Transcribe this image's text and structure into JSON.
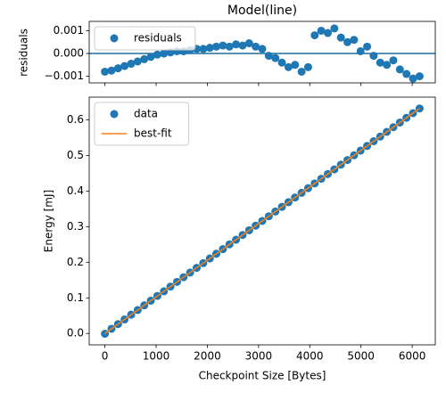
{
  "chart_data": [
    {
      "type": "scatter",
      "title": "Model(line)",
      "ylabel": "residuals",
      "x": [
        0,
        128,
        256,
        384,
        512,
        640,
        768,
        896,
        1024,
        1152,
        1280,
        1408,
        1536,
        1664,
        1792,
        1920,
        2048,
        2176,
        2304,
        2432,
        2560,
        2688,
        2816,
        2944,
        3072,
        3200,
        3328,
        3456,
        3584,
        3712,
        3840,
        3968,
        4096,
        4224,
        4352,
        4480,
        4608,
        4736,
        4864,
        4992,
        5120,
        5248,
        5376,
        5504,
        5632,
        5760,
        5888,
        6016,
        6144
      ],
      "series": [
        {
          "name": "residuals",
          "type": "scatter",
          "color": "#1f77b4",
          "values": [
            -0.0008,
            -0.00075,
            -0.00065,
            -0.00055,
            -0.00045,
            -0.00035,
            -0.00025,
            -0.00015,
            -5e-05,
            0,
            5e-05,
            0.0001,
            0.0001,
            0.00015,
            0.0002,
            0.0002,
            0.00025,
            0.0003,
            0.00035,
            0.0003,
            0.0004,
            0.00035,
            0.00045,
            0.0003,
            0.0002,
            -0.0001,
            -0.0002,
            -0.0004,
            -0.0006,
            -0.0005,
            -0.0008,
            -0.0006,
            0.0008,
            0.001,
            0.0009,
            0.0011,
            0.0007,
            0.0005,
            0.0006,
            0.0001,
            0.0003,
            -0.0001,
            -0.0004,
            -0.0005,
            -0.0003,
            -0.0007,
            -0.0009,
            -0.0011,
            -0.001
          ]
        }
      ],
      "hline": 0,
      "hline_color": "#1f6f9b",
      "xlim": [
        -307,
        6451
      ],
      "xticks": [
        0,
        1000,
        2000,
        3000,
        4000,
        5000,
        6000
      ],
      "ylim": [
        -0.00129,
        0.00141
      ],
      "yticks": [
        {
          "value": -0.001,
          "label": "−0.001"
        },
        {
          "value": 0,
          "label": "0.000"
        },
        0.001
      ],
      "legend": "upper left"
    },
    {
      "type": "scatter",
      "xlabel": "Checkpoint Size [Bytes]",
      "ylabel": "Energy [mJ]",
      "x": [
        0,
        128,
        256,
        384,
        512,
        640,
        768,
        896,
        1024,
        1152,
        1280,
        1408,
        1536,
        1664,
        1792,
        1920,
        2048,
        2176,
        2304,
        2432,
        2560,
        2688,
        2816,
        2944,
        3072,
        3200,
        3328,
        3456,
        3584,
        3712,
        3840,
        3968,
        4096,
        4224,
        4352,
        4480,
        4608,
        4736,
        4864,
        4992,
        5120,
        5248,
        5376,
        5504,
        5632,
        5760,
        5888,
        6016,
        6144
      ],
      "series": [
        {
          "name": "data",
          "type": "scatter",
          "color": "#1f77b4",
          "values": [
            -0.0008,
            0.0132,
            0.0263,
            0.0395,
            0.0527,
            0.0659,
            0.079,
            0.0922,
            0.1054,
            0.1185,
            0.1317,
            0.1449,
            0.1581,
            0.1712,
            0.1844,
            0.1976,
            0.2107,
            0.2239,
            0.2371,
            0.2503,
            0.2634,
            0.2766,
            0.2898,
            0.3029,
            0.3161,
            0.3293,
            0.3425,
            0.3556,
            0.3688,
            0.382,
            0.3951,
            0.4083,
            0.4215,
            0.4346,
            0.4478,
            0.461,
            0.4742,
            0.4873,
            0.5005,
            0.5137,
            0.5268,
            0.54,
            0.5532,
            0.5664,
            0.5795,
            0.5927,
            0.6059,
            0.619,
            0.6322
          ]
        },
        {
          "name": "best-fit",
          "type": "line",
          "color": "#ff7f0e",
          "x": [
            0,
            6144
          ],
          "values": [
            0,
            0.6322
          ]
        }
      ],
      "xlim": [
        -307,
        6451
      ],
      "xticks": [
        0,
        1000,
        2000,
        3000,
        4000,
        5000,
        6000
      ],
      "ylim": [
        -0.032,
        0.664
      ],
      "yticks": [
        {
          "value": 0,
          "label": "0.0"
        },
        0.1,
        0.2,
        0.3,
        0.4,
        0.5,
        0.6
      ],
      "legend": "upper left"
    }
  ]
}
